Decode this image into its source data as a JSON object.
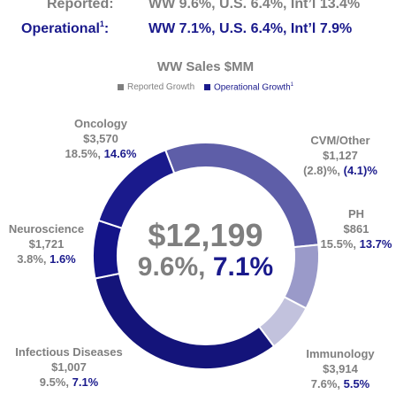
{
  "header": {
    "reported_label": "Reported:",
    "reported_value": "WW 9.6%, U.S. 6.4%, Int’l 13.4%",
    "operational_label": "Operational",
    "operational_sup": "1",
    "operational_suffix": ":",
    "operational_value": "WW 7.1%, U.S. 6.4%, Int’l 7.9%"
  },
  "legend": {
    "reported": "Reported Growth",
    "operational": "Operational Growth",
    "operational_sup": "1",
    "reported_color": "#7f7f7f",
    "operational_color": "#1a1a8c"
  },
  "center": {
    "total": "$12,199",
    "reported": "9.6%,",
    "operational": "7.1%"
  },
  "chart_data": {
    "type": "pie",
    "title": "WW Sales $MM",
    "donut": true,
    "series": [
      {
        "name": "Oncology",
        "value": 3570,
        "value_label": "$3,570",
        "reported": "18.5%,",
        "operational": "14.6%",
        "color": "#5e5ea8"
      },
      {
        "name": "CVM/Other",
        "value": 1127,
        "value_label": "$1,127",
        "reported": "(2.8)%,",
        "operational": "(4.1)%",
        "color": "#9a9ac9"
      },
      {
        "name": "PH",
        "value": 861,
        "value_label": "$861",
        "reported": "15.5%,",
        "operational": "13.7%",
        "color": "#c2c2dd"
      },
      {
        "name": "Immunology",
        "value": 3914,
        "value_label": "$3,914",
        "reported": "7.6%,",
        "operational": "5.5%",
        "color": "#14147a"
      },
      {
        "name": "Infectious Diseases",
        "value": 1007,
        "value_label": "$1,007",
        "reported": "9.5%,",
        "operational": "7.1%",
        "color": "#141488"
      },
      {
        "name": "Neuroscience",
        "value": 1721,
        "value_label": "$1,721",
        "reported": "3.8%,",
        "operational": "1.6%",
        "color": "#1a1a8c"
      }
    ]
  }
}
